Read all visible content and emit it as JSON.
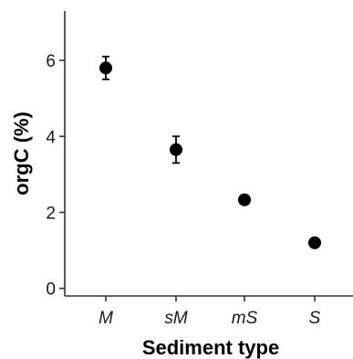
{
  "chart_data": {
    "type": "scatter",
    "categories": [
      "M",
      "sM",
      "mS",
      "S"
    ],
    "values": [
      5.8,
      3.65,
      2.33,
      1.2
    ],
    "error_low": [
      5.5,
      3.3,
      2.33,
      1.2
    ],
    "error_high": [
      6.1,
      4.0,
      2.33,
      1.2
    ],
    "xlabel": "Sediment type",
    "ylabel": "orgC (%)",
    "ylim": [
      -0.2,
      7.3
    ],
    "yticks": [
      0,
      2,
      4,
      6
    ],
    "grid": false,
    "legend": "none",
    "marker_color": "#000000",
    "axis_color": "#333333"
  }
}
